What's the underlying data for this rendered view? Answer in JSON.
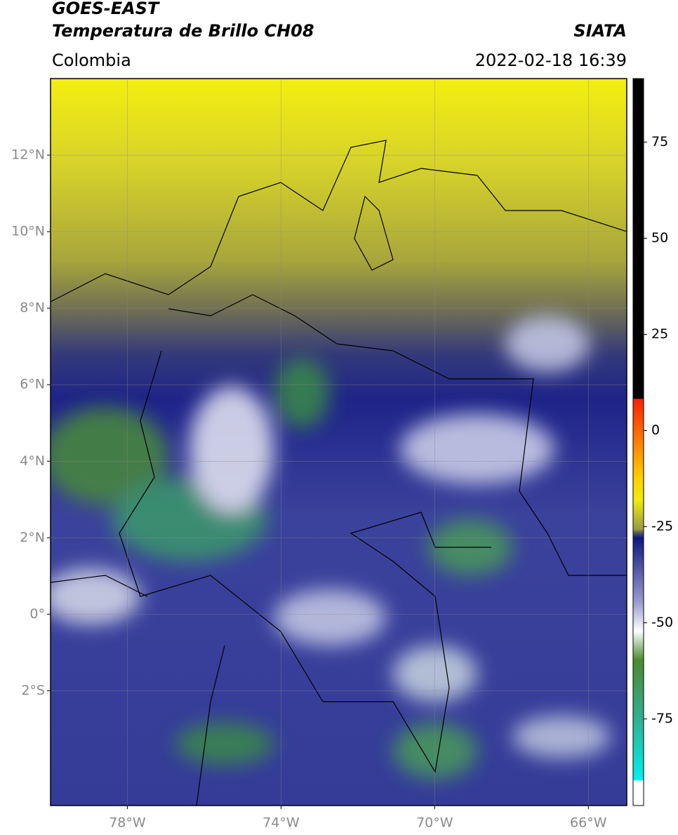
{
  "header": {
    "title": "GOES-EAST",
    "subtitle": "Temperatura de Brillo CH08",
    "source": "SIATA",
    "region": "Colombia",
    "datetime": "2022-02-18 16:39"
  },
  "map": {
    "xlim": [
      -80,
      -65
    ],
    "ylim": [
      -5,
      14
    ],
    "lat_ticks": [
      {
        "value": 12,
        "label": "12°N"
      },
      {
        "value": 10,
        "label": "10°N"
      },
      {
        "value": 8,
        "label": "8°N"
      },
      {
        "value": 6,
        "label": "6°N"
      },
      {
        "value": 4,
        "label": "4°N"
      },
      {
        "value": 2,
        "label": "2°N"
      },
      {
        "value": 0,
        "label": "0°"
      },
      {
        "value": -2,
        "label": "2°S"
      }
    ],
    "lon_ticks": [
      {
        "value": -78,
        "label": "78°W"
      },
      {
        "value": -74,
        "label": "74°W"
      },
      {
        "value": -70,
        "label": "70°W"
      },
      {
        "value": -66,
        "label": "66°W"
      }
    ]
  },
  "colorbar": {
    "lim": [
      -97.5,
      91.5
    ],
    "ticks": [
      75,
      50,
      25,
      0,
      -25,
      -50,
      -75
    ]
  }
}
